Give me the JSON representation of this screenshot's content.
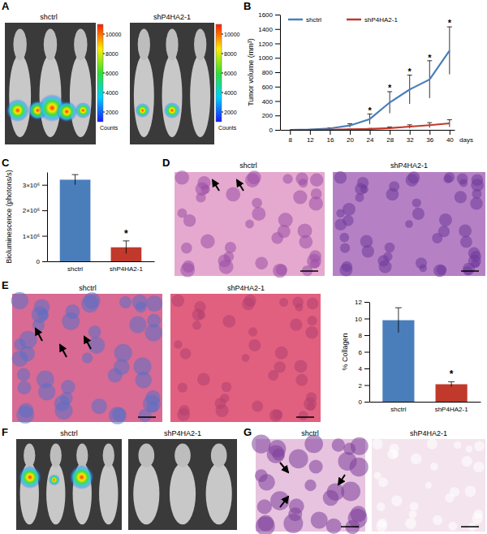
{
  "panels": {
    "A": {
      "label": "A",
      "captions": [
        "shctrl",
        "shP4HA2-1"
      ],
      "colorbar": {
        "label": "Counts",
        "range": [
          1000,
          11000
        ],
        "ticks": [
          2000,
          4000,
          6000,
          8000,
          10000
        ]
      }
    },
    "B": {
      "label": "B"
    },
    "C": {
      "label": "C"
    },
    "D": {
      "label": "D",
      "captions": [
        "shctrl",
        "shP4HA2-1"
      ]
    },
    "E": {
      "label": "E",
      "captions": [
        "shctrl",
        "shP4HA2-1"
      ]
    },
    "F": {
      "label": "F",
      "captions": [
        "shctrl",
        "shP4HA2-1"
      ]
    },
    "G": {
      "label": "G",
      "captions": [
        "shctrl",
        "shP4HA2-1"
      ]
    }
  },
  "chart_data": [
    {
      "type": "line",
      "x": [
        8,
        12,
        16,
        20,
        24,
        28,
        32,
        36,
        40
      ],
      "xlim": [
        6,
        41
      ],
      "xticks": [
        8,
        12,
        16,
        20,
        24,
        28,
        32,
        36,
        40
      ],
      "x_label": "days",
      "ylim": [
        0,
        1600
      ],
      "yticks": [
        0,
        200,
        400,
        600,
        800,
        1000,
        1200,
        1400,
        1600
      ],
      "y_label": "Tumor volume (mm³)",
      "legend": "top-left",
      "series": [
        {
          "name": "shctrl",
          "color": "#4a7ebb",
          "values": [
            0,
            5,
            20,
            60,
            150,
            380,
            560,
            700,
            1100
          ],
          "errors": [
            0,
            2,
            8,
            25,
            70,
            150,
            200,
            260,
            330
          ]
        },
        {
          "name": "shP4HA2-1",
          "color": "#c0392b",
          "values": [
            0,
            0,
            3,
            6,
            12,
            25,
            45,
            65,
            90
          ],
          "errors": [
            0,
            0,
            2,
            4,
            8,
            15,
            25,
            35,
            50
          ]
        }
      ],
      "annotations": [
        {
          "x": 24,
          "y": 230,
          "text": "*"
        },
        {
          "x": 28,
          "y": 540,
          "text": "*"
        },
        {
          "x": 32,
          "y": 770,
          "text": "*"
        },
        {
          "x": 36,
          "y": 960,
          "text": "*"
        },
        {
          "x": 40,
          "y": 1440,
          "text": "*"
        }
      ]
    },
    {
      "type": "bar",
      "categories": [
        "shctrl",
        "shP4HA2-1"
      ],
      "values": [
        3200000,
        550000
      ],
      "errors": [
        200000,
        250000
      ],
      "colors": [
        "#4a7ebb",
        "#c0392b"
      ],
      "ylim": [
        0,
        3500000
      ],
      "yticks": [
        0,
        {
          "value": 1000000,
          "label": "1×10⁶"
        },
        {
          "value": 2000000,
          "label": "2×10⁶"
        },
        {
          "value": 3000000,
          "label": "3×10⁶"
        }
      ],
      "y_label": "Bioluminescence (photons/s)",
      "annotations": [
        {
          "x": "shP4HA2-1",
          "y": 950000,
          "text": "*"
        }
      ]
    },
    {
      "type": "bar",
      "categories": [
        "shctrl",
        "shP4HA2-1"
      ],
      "values": [
        9.8,
        2.1
      ],
      "errors": [
        1.5,
        0.3
      ],
      "colors": [
        "#4a7ebb",
        "#c0392b"
      ],
      "ylim": [
        0,
        12
      ],
      "yticks": [
        0,
        2,
        4,
        6,
        8,
        10,
        12
      ],
      "y_label": "% Collagen",
      "annotations": [
        {
          "x": "shP4HA2-1",
          "y": 2.9,
          "text": "*"
        }
      ]
    }
  ]
}
